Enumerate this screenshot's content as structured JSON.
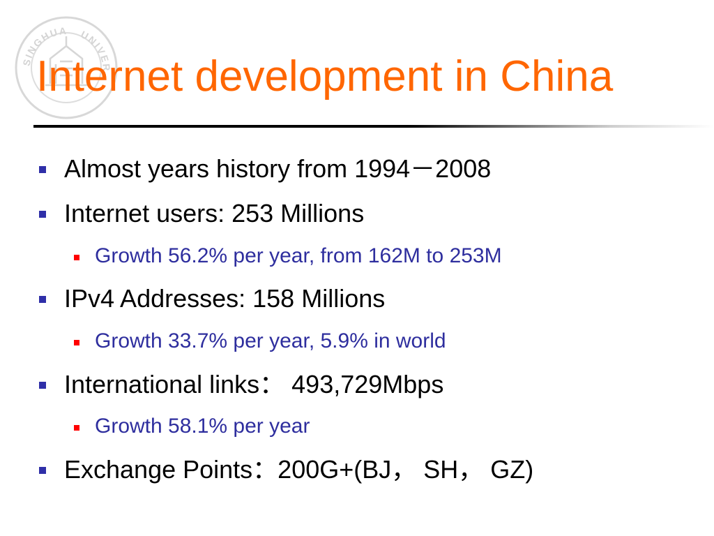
{
  "slide": {
    "title": "Internet development in China",
    "logo": {
      "text_top": "UNIVERSITY",
      "text_left": "SINGHUA",
      "icon": "university-seal-icon"
    },
    "bullets": [
      {
        "level": 1,
        "text": "Almost years history from 1994－2008"
      },
      {
        "level": 1,
        "text": "Internet users: 253 Millions"
      },
      {
        "level": 2,
        "text": "Growth 56.2% per year, from 162M to 253M"
      },
      {
        "level": 1,
        "text": "IPv4 Addresses: 158 Millions"
      },
      {
        "level": 2,
        "text": "Growth 33.7% per year, 5.9% in world"
      },
      {
        "level": 1,
        "text": "International links： 493,729Mbps"
      },
      {
        "level": 2,
        "text": "Growth 58.1% per year"
      },
      {
        "level": 1,
        "text": "Exchange Points：200G+(BJ， SH， GZ)"
      }
    ]
  },
  "colors": {
    "title": "#ff6600",
    "level1_text": "#000000",
    "level1_bullet": "#2f2fa8",
    "level2_text": "#2e2e9e",
    "level2_bullet": "#ff0000"
  }
}
